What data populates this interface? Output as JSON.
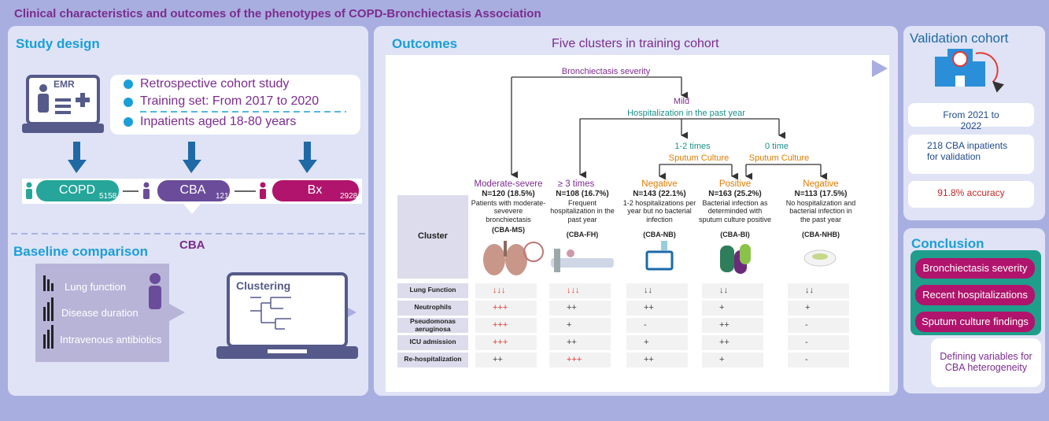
{
  "title": "Clinical characteristics and outcomes of the phenotypes of COPD-Bronchiectasis Association",
  "study_design": {
    "heading": "Study design",
    "emr": "EMR",
    "bullets": [
      "Retrospective cohort study",
      "Training set: From 2017 to 2020",
      "Inpatients aged 18-80 years"
    ],
    "groups": [
      {
        "label": "COPD",
        "n": 5158,
        "color": "#26a69a"
      },
      {
        "label": "CBA",
        "n": 1219,
        "color": "#6b4c9a"
      },
      {
        "label": "Bx",
        "n": 2928,
        "color": "#b0146c"
      }
    ]
  },
  "baseline": {
    "cba": "CBA",
    "heading": "Baseline comparison",
    "items": [
      "Lung function",
      "Disease duration",
      "Intravenous antibiotics"
    ],
    "clustering": "Clustering"
  },
  "outcomes": {
    "heading": "Outcomes",
    "subtitle": "Five clusters in training cohort",
    "tree": {
      "root": "Bronchiectasis severity",
      "mild": "Mild",
      "hosp": "Hospitalization in the past year",
      "h12": "1-2 times",
      "h0": "0 time",
      "sputum_left": "Sputum Culture",
      "sputum_right": "Sputum Culture"
    },
    "clusters": [
      {
        "branch": "Moderate-severe",
        "color": "#7b2c8f",
        "n": "N=120 (18.5%)",
        "description": "Patients with moderate-sevevere bronchiectasis",
        "code": "(CBA-MS)"
      },
      {
        "branch": "≥ 3 times",
        "color": "#7b2c8f",
        "n": "N=108 (16.7%)",
        "description": "Frequent hospitalization in the past year",
        "code": "(CBA-FH)"
      },
      {
        "branch": "Negative",
        "color": "#e07b00",
        "n": "N=143 (22.1%)",
        "description": "1-2 hospitalizations per year but no bacterial infection",
        "code": "(CBA-NB)"
      },
      {
        "branch": "Positive",
        "color": "#e07b00",
        "n": "N=163 (25.2%)",
        "description": "Bacterial infection as determinded with sputum culture positive",
        "code": "(CBA-BI)"
      },
      {
        "branch": "Negative",
        "color": "#e07b00",
        "n": "N=113 (17.5%)",
        "description": "No hospitalization and bacterial infection in the past year",
        "code": "(CBA-NHB)"
      }
    ],
    "table": {
      "header": "Cluster",
      "rows": [
        {
          "label": "Lung Function",
          "values": [
            "↓↓↓",
            "↓↓↓",
            "↓↓",
            "↓↓",
            "↓↓"
          ],
          "colors": [
            "#e53935",
            "#e53935",
            "#444444",
            "#444444",
            "#444444"
          ]
        },
        {
          "label": "Neutrophils",
          "values": [
            "+++",
            "++",
            "++",
            "+",
            "+"
          ],
          "colors": [
            "#e53935",
            "#444444",
            "#444444",
            "#444444",
            "#444444"
          ]
        },
        {
          "label": "Pseudomonas aeruginosa",
          "values": [
            "+++",
            "+",
            "-",
            "++",
            "-"
          ],
          "colors": [
            "#e53935",
            "#444444",
            "#444444",
            "#444444",
            "#444444"
          ]
        },
        {
          "label": "ICU admission",
          "values": [
            "+++",
            "++",
            "+",
            "++",
            "-"
          ],
          "colors": [
            "#e53935",
            "#444444",
            "#444444",
            "#444444",
            "#444444"
          ]
        },
        {
          "label": "Re-hospitalization",
          "values": [
            "++",
            "+++",
            "++",
            "+",
            "-"
          ],
          "colors": [
            "#444444",
            "#e53935",
            "#444444",
            "#444444",
            "#444444"
          ]
        }
      ]
    }
  },
  "validation": {
    "heading": "Validation cohort",
    "items": [
      "From 2021 to 2022",
      "218 CBA inpatients for validation",
      "91.8% accuracy"
    ]
  },
  "conclusion": {
    "heading": "Conclusion",
    "items": [
      "Bronchiectasis severity",
      "Recent hospitalizations",
      "Sputum culture findings"
    ],
    "note": "Defining variables for CBA heterogeneity"
  }
}
